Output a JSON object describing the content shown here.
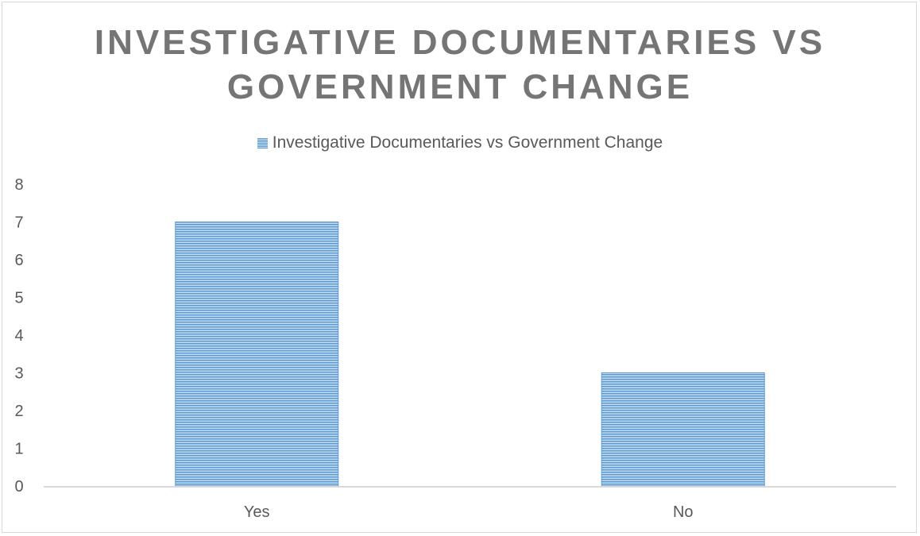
{
  "chart_data": {
    "type": "bar",
    "title": "INVESTIGATIVE DOCUMENTARIES VS GOVERNMENT CHANGE",
    "title_lines": [
      "INVESTIGATIVE DOCUMENTARIES VS",
      "GOVERNMENT CHANGE"
    ],
    "categories": [
      "Yes",
      "No"
    ],
    "series": [
      {
        "name": "Investigative Documentaries vs Government Change",
        "values": [
          7,
          3
        ]
      }
    ],
    "ylim": [
      0,
      8
    ],
    "yticks": [
      0,
      1,
      2,
      3,
      4,
      5,
      6,
      7,
      8
    ],
    "grid": false,
    "legend_position": "top",
    "colors": {
      "bar": "#5b9bd5",
      "bar_light": "#c6dbf0",
      "axis": "#d9d9d9",
      "title": "#757575",
      "text": "#595959"
    }
  }
}
